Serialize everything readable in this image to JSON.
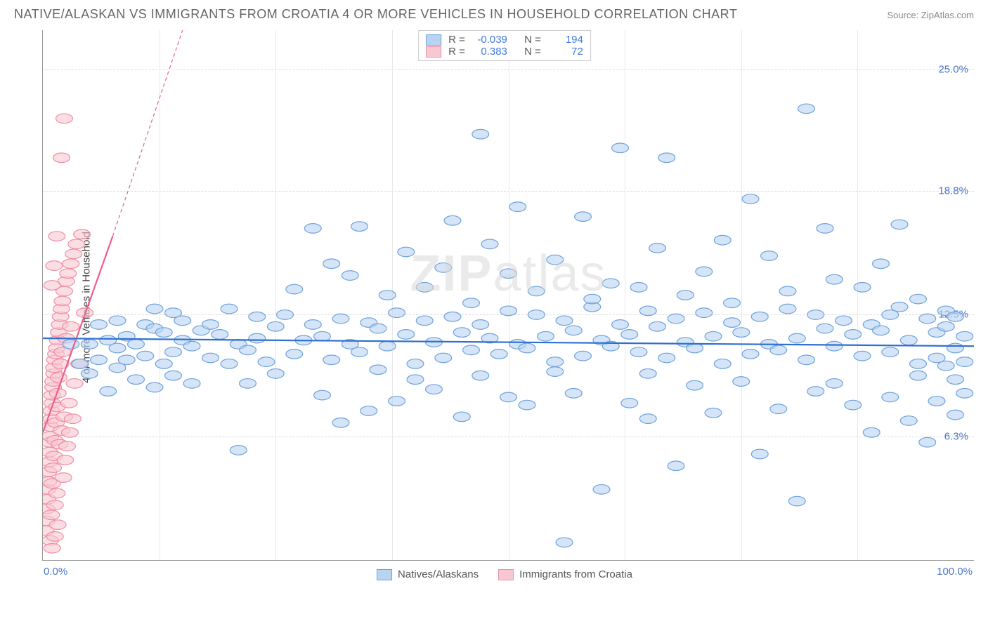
{
  "title": "NATIVE/ALASKAN VS IMMIGRANTS FROM CROATIA 4 OR MORE VEHICLES IN HOUSEHOLD CORRELATION CHART",
  "source": "Source: ZipAtlas.com",
  "ylabel": "4 or more Vehicles in Household",
  "watermark": "ZIPatlas",
  "colors": {
    "blue_fill": "#b9d4f2",
    "blue_stroke": "#6fa3dd",
    "blue_line": "#2e6fd1",
    "pink_fill": "#f8c8d2",
    "pink_stroke": "#f08fa5",
    "pink_line": "#ef5d88",
    "grid": "#dcdcdc",
    "axis": "#999999",
    "tick_text": "#4a76c7",
    "title_text": "#666666",
    "label_text": "#444444"
  },
  "chart": {
    "type": "scatter",
    "xlim": [
      0,
      100
    ],
    "ylim": [
      0,
      27
    ],
    "yticks": [
      {
        "value": 6.3,
        "label": "6.3%"
      },
      {
        "value": 12.5,
        "label": "12.5%"
      },
      {
        "value": 18.8,
        "label": "18.8%"
      },
      {
        "value": 25.0,
        "label": "25.0%"
      }
    ],
    "xticks_minor": [
      12.5,
      25,
      37.5,
      50,
      62.5,
      75,
      87.5
    ],
    "xticks": [
      {
        "value": 0,
        "label": "0.0%",
        "align": "left"
      },
      {
        "value": 100,
        "label": "100.0%",
        "align": "right"
      }
    ],
    "marker_radius": 9,
    "marker_opacity": 0.6,
    "marker_stroke_width": 1.2
  },
  "stats_legend": {
    "rows": [
      {
        "swatch_fill": "#b9d4f2",
        "swatch_stroke": "#6fa3dd",
        "r": "-0.039",
        "n": "194"
      },
      {
        "swatch_fill": "#f8c8d2",
        "swatch_stroke": "#f08fa5",
        "r": "0.383",
        "n": "72"
      }
    ],
    "r_label": "R =",
    "n_label": "N ="
  },
  "series_legend": {
    "items": [
      {
        "label": "Natives/Alaskans",
        "fill": "#b9d4f2",
        "stroke": "#6fa3dd"
      },
      {
        "label": "Immigrants from Croatia",
        "fill": "#f8c8d2",
        "stroke": "#f08fa5"
      }
    ]
  },
  "trend_lines": {
    "blue": {
      "x1": 0,
      "y1": 11.3,
      "x2": 100,
      "y2": 10.9,
      "color": "#2e6fd1",
      "width": 2.2
    },
    "pink_solid": {
      "x1": 0,
      "y1": 6.5,
      "x2": 7.5,
      "y2": 16.5,
      "color": "#ef5d88",
      "width": 2.2
    },
    "pink_dashed": {
      "x1": 7.5,
      "y1": 16.5,
      "x2": 15,
      "y2": 27,
      "color": "#ef5d88",
      "width": 1.2,
      "dash": "5,4"
    }
  },
  "series": {
    "blue": [
      [
        3,
        11
      ],
      [
        4,
        10
      ],
      [
        5,
        9.5
      ],
      [
        5,
        11
      ],
      [
        6,
        12
      ],
      [
        6,
        10.2
      ],
      [
        7,
        8.6
      ],
      [
        7,
        11.2
      ],
      [
        8,
        9.8
      ],
      [
        8,
        10.8
      ],
      [
        8,
        12.2
      ],
      [
        9,
        11.4
      ],
      [
        9,
        10.2
      ],
      [
        10,
        9.2
      ],
      [
        10,
        11
      ],
      [
        11,
        12.0
      ],
      [
        11,
        10.4
      ],
      [
        12,
        8.8
      ],
      [
        12,
        11.8
      ],
      [
        12,
        12.8
      ],
      [
        13,
        10.0
      ],
      [
        13,
        11.6
      ],
      [
        14,
        9.4
      ],
      [
        14,
        12.6
      ],
      [
        14,
        10.6
      ],
      [
        15,
        11.2
      ],
      [
        15,
        12.2
      ],
      [
        16,
        10.9
      ],
      [
        16,
        9.0
      ],
      [
        17,
        11.7
      ],
      [
        18,
        10.3
      ],
      [
        18,
        12.0
      ],
      [
        19,
        11.5
      ],
      [
        20,
        10.0
      ],
      [
        20,
        12.8
      ],
      [
        21,
        11.0
      ],
      [
        21,
        5.6
      ],
      [
        22,
        10.7
      ],
      [
        22,
        9.0
      ],
      [
        23,
        12.4
      ],
      [
        23,
        11.3
      ],
      [
        24,
        10.1
      ],
      [
        25,
        11.9
      ],
      [
        25,
        9.5
      ],
      [
        26,
        12.5
      ],
      [
        27,
        10.5
      ],
      [
        27,
        13.8
      ],
      [
        28,
        11.2
      ],
      [
        29,
        12.0
      ],
      [
        29,
        16.9
      ],
      [
        30,
        8.4
      ],
      [
        30,
        11.4
      ],
      [
        31,
        10.2
      ],
      [
        31,
        15.1
      ],
      [
        32,
        12.3
      ],
      [
        32,
        7.0
      ],
      [
        33,
        11.0
      ],
      [
        33,
        14.5
      ],
      [
        34,
        10.6
      ],
      [
        34,
        17.0
      ],
      [
        35,
        12.1
      ],
      [
        35,
        7.6
      ],
      [
        36,
        11.8
      ],
      [
        36,
        9.7
      ],
      [
        37,
        10.9
      ],
      [
        37,
        13.5
      ],
      [
        38,
        12.6
      ],
      [
        38,
        8.1
      ],
      [
        39,
        11.5
      ],
      [
        39,
        15.7
      ],
      [
        40,
        10.0
      ],
      [
        40,
        9.2
      ],
      [
        41,
        12.2
      ],
      [
        41,
        13.9
      ],
      [
        42,
        11.1
      ],
      [
        42,
        8.7
      ],
      [
        43,
        10.3
      ],
      [
        43,
        14.9
      ],
      [
        44,
        12.4
      ],
      [
        44,
        17.3
      ],
      [
        45,
        11.6
      ],
      [
        45,
        7.3
      ],
      [
        46,
        10.7
      ],
      [
        46,
        13.1
      ],
      [
        47,
        12.0
      ],
      [
        47,
        9.4
      ],
      [
        47,
        21.7
      ],
      [
        48,
        11.3
      ],
      [
        48,
        16.1
      ],
      [
        49,
        10.5
      ],
      [
        50,
        8.3
      ],
      [
        50,
        12.7
      ],
      [
        50,
        14.6
      ],
      [
        51,
        11.0
      ],
      [
        51,
        18.0
      ],
      [
        52,
        10.8
      ],
      [
        52,
        7.9
      ],
      [
        53,
        12.5
      ],
      [
        53,
        13.7
      ],
      [
        54,
        11.4
      ],
      [
        55,
        9.6
      ],
      [
        55,
        10.1
      ],
      [
        55,
        15.3
      ],
      [
        56,
        12.2
      ],
      [
        56,
        0.9
      ],
      [
        57,
        11.7
      ],
      [
        57,
        8.5
      ],
      [
        58,
        10.4
      ],
      [
        58,
        17.5
      ],
      [
        59,
        12.9
      ],
      [
        59,
        13.3
      ],
      [
        60,
        11.2
      ],
      [
        60,
        3.6
      ],
      [
        61,
        10.9
      ],
      [
        61,
        14.1
      ],
      [
        62,
        12.0
      ],
      [
        62,
        21.0
      ],
      [
        63,
        11.5
      ],
      [
        63,
        8.0
      ],
      [
        64,
        10.6
      ],
      [
        64,
        13.9
      ],
      [
        65,
        12.7
      ],
      [
        65,
        7.2
      ],
      [
        65,
        9.5
      ],
      [
        66,
        11.9
      ],
      [
        66,
        15.9
      ],
      [
        67,
        10.3
      ],
      [
        67,
        20.5
      ],
      [
        68,
        12.3
      ],
      [
        68,
        4.8
      ],
      [
        69,
        11.1
      ],
      [
        69,
        13.5
      ],
      [
        70,
        10.8
      ],
      [
        70,
        8.9
      ],
      [
        71,
        12.6
      ],
      [
        71,
        14.7
      ],
      [
        72,
        11.4
      ],
      [
        72,
        7.5
      ],
      [
        73,
        10.0
      ],
      [
        73,
        16.3
      ],
      [
        74,
        12.1
      ],
      [
        74,
        13.1
      ],
      [
        75,
        11.6
      ],
      [
        75,
        9.1
      ],
      [
        76,
        10.5
      ],
      [
        76,
        18.4
      ],
      [
        77,
        12.4
      ],
      [
        77,
        5.4
      ],
      [
        78,
        11.0
      ],
      [
        78,
        15.5
      ],
      [
        79,
        10.7
      ],
      [
        79,
        7.7
      ],
      [
        80,
        12.8
      ],
      [
        80,
        13.7
      ],
      [
        81,
        11.3
      ],
      [
        81,
        3.0
      ],
      [
        82,
        10.2
      ],
      [
        82,
        23.0
      ],
      [
        83,
        12.5
      ],
      [
        83,
        8.6
      ],
      [
        84,
        11.8
      ],
      [
        84,
        16.9
      ],
      [
        85,
        9.0
      ],
      [
        85,
        10.9
      ],
      [
        85,
        14.3
      ],
      [
        86,
        12.2
      ],
      [
        87,
        11.5
      ],
      [
        87,
        7.9
      ],
      [
        88,
        10.4
      ],
      [
        88,
        13.9
      ],
      [
        89,
        12.0
      ],
      [
        89,
        6.5
      ],
      [
        90,
        11.7
      ],
      [
        90,
        15.1
      ],
      [
        91,
        10.6
      ],
      [
        91,
        8.3
      ],
      [
        91,
        12.5
      ],
      [
        92,
        12.9
      ],
      [
        92,
        17.1
      ],
      [
        93,
        11.2
      ],
      [
        93,
        7.1
      ],
      [
        94,
        10.0
      ],
      [
        94,
        9.4
      ],
      [
        94,
        13.3
      ],
      [
        95,
        12.3
      ],
      [
        95,
        6.0
      ],
      [
        96,
        11.6
      ],
      [
        96,
        8.1
      ],
      [
        96,
        10.3
      ],
      [
        97,
        12.7
      ],
      [
        97,
        9.9
      ],
      [
        97,
        11.9
      ],
      [
        98,
        10.8
      ],
      [
        98,
        7.4
      ],
      [
        98,
        12.4
      ],
      [
        98,
        9.2
      ],
      [
        99,
        11.4
      ],
      [
        99,
        8.5
      ],
      [
        99,
        10.1
      ]
    ],
    "pink": [
      [
        0.3,
        1.5
      ],
      [
        0.4,
        2.0
      ],
      [
        0.4,
        2.6
      ],
      [
        0.5,
        3.1
      ],
      [
        0.5,
        3.6
      ],
      [
        0.6,
        4.0
      ],
      [
        0.6,
        4.5
      ],
      [
        0.7,
        5.0
      ],
      [
        0.7,
        5.5
      ],
      [
        0.7,
        6.0
      ],
      [
        0.8,
        6.3
      ],
      [
        0.8,
        1.0
      ],
      [
        0.8,
        6.8
      ],
      [
        0.9,
        7.2
      ],
      [
        0.9,
        2.3
      ],
      [
        0.9,
        7.6
      ],
      [
        1.0,
        8.0
      ],
      [
        1.0,
        3.9
      ],
      [
        1.0,
        8.4
      ],
      [
        1.1,
        8.8
      ],
      [
        1.1,
        4.7
      ],
      [
        1.1,
        9.1
      ],
      [
        1.2,
        9.5
      ],
      [
        1.2,
        5.3
      ],
      [
        1.2,
        9.8
      ],
      [
        1.3,
        10.2
      ],
      [
        1.3,
        6.1
      ],
      [
        1.3,
        2.8
      ],
      [
        1.4,
        10.5
      ],
      [
        1.4,
        7.0
      ],
      [
        1.5,
        10.8
      ],
      [
        1.5,
        7.8
      ],
      [
        1.5,
        3.4
      ],
      [
        1.6,
        11.2
      ],
      [
        1.6,
        8.5
      ],
      [
        1.7,
        11.6
      ],
      [
        1.7,
        9.3
      ],
      [
        1.8,
        12.0
      ],
      [
        1.8,
        5.9
      ],
      [
        1.9,
        12.4
      ],
      [
        1.9,
        10.0
      ],
      [
        2.0,
        12.8
      ],
      [
        2.0,
        6.6
      ],
      [
        2.1,
        13.2
      ],
      [
        2.1,
        10.6
      ],
      [
        2.3,
        13.7
      ],
      [
        2.3,
        7.3
      ],
      [
        2.5,
        14.2
      ],
      [
        2.5,
        11.3
      ],
      [
        2.7,
        14.6
      ],
      [
        2.8,
        8.0
      ],
      [
        3.0,
        15.1
      ],
      [
        3.0,
        11.9
      ],
      [
        3.3,
        15.6
      ],
      [
        3.4,
        9.0
      ],
      [
        3.6,
        16.1
      ],
      [
        3.9,
        10.0
      ],
      [
        4.2,
        16.6
      ],
      [
        4.5,
        12.6
      ],
      [
        2.2,
        4.2
      ],
      [
        2.4,
        5.1
      ],
      [
        2.6,
        5.8
      ],
      [
        2.9,
        6.5
      ],
      [
        3.2,
        7.2
      ],
      [
        1.0,
        14.0
      ],
      [
        1.2,
        15.0
      ],
      [
        1.5,
        16.5
      ],
      [
        2.0,
        20.5
      ],
      [
        2.3,
        22.5
      ],
      [
        1.0,
        0.6
      ],
      [
        1.3,
        1.2
      ],
      [
        1.6,
        1.8
      ]
    ]
  }
}
